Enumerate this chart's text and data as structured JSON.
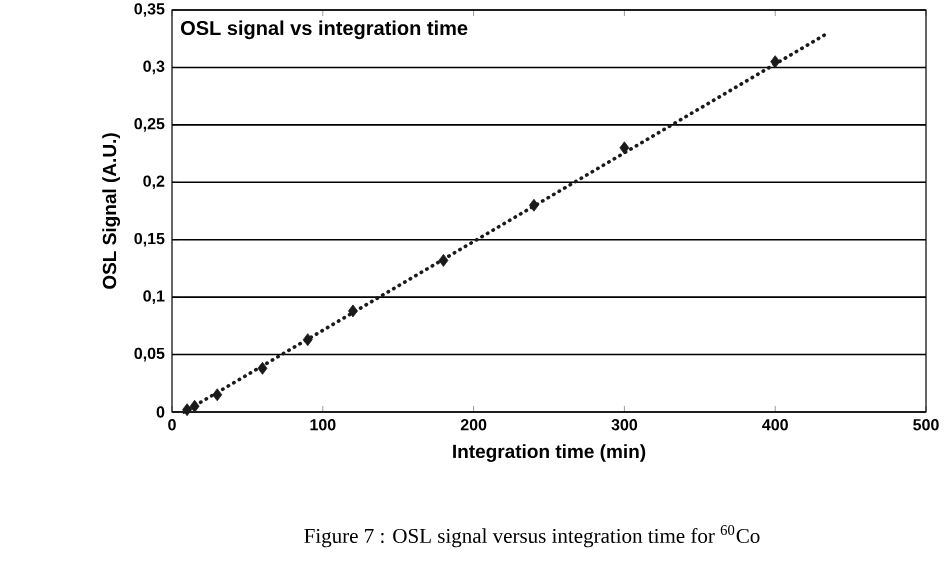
{
  "chart_data": {
    "type": "scatter",
    "title": "OSL signal vs integration time",
    "xlabel": "Integration time (min)",
    "ylabel": "OSL Signal (A.U.)",
    "annotations": [
      "Figure 7 : OSL signal versus integration time for $^{60}$Co"
    ],
    "xlim": [
      0,
      500
    ],
    "ylim": [
      0,
      0.35
    ],
    "xticks": [
      0,
      100,
      200,
      300,
      400,
      500
    ],
    "yticks": [
      0,
      {
        "value": 0.05,
        "label": "0,05"
      },
      {
        "value": 0.1,
        "label": "0,1"
      },
      {
        "value": 0.15,
        "label": "0,15"
      },
      {
        "value": 0.2,
        "label": "0,2"
      },
      {
        "value": 0.25,
        "label": "0,25"
      },
      {
        "value": 0.3,
        "label": "0,3"
      },
      {
        "value": 0.35,
        "label": "0,35"
      }
    ],
    "grid": "y",
    "series": [
      {
        "marker": "diamond",
        "color": "#1a1a1a",
        "x": [
          10,
          15,
          30,
          60,
          90,
          120,
          180,
          240,
          300,
          400
        ],
        "values": [
          0.002,
          0.005,
          0.015,
          0.038,
          0.063,
          0.088,
          0.132,
          0.18,
          0.23,
          0.305
        ]
      },
      {
        "type": "line",
        "marker": "none",
        "line_style": "dotted",
        "color": "#1a1a1a",
        "x": [
          8,
          435
        ],
        "values": [
          0,
          0.33
        ]
      }
    ]
  }
}
